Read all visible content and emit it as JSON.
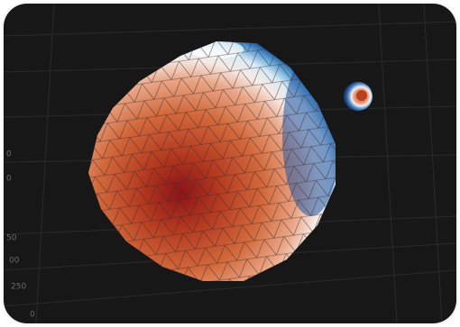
{
  "axis_labels": [
    "0",
    "0",
    "50",
    "00",
    "250",
    "0"
  ]
}
